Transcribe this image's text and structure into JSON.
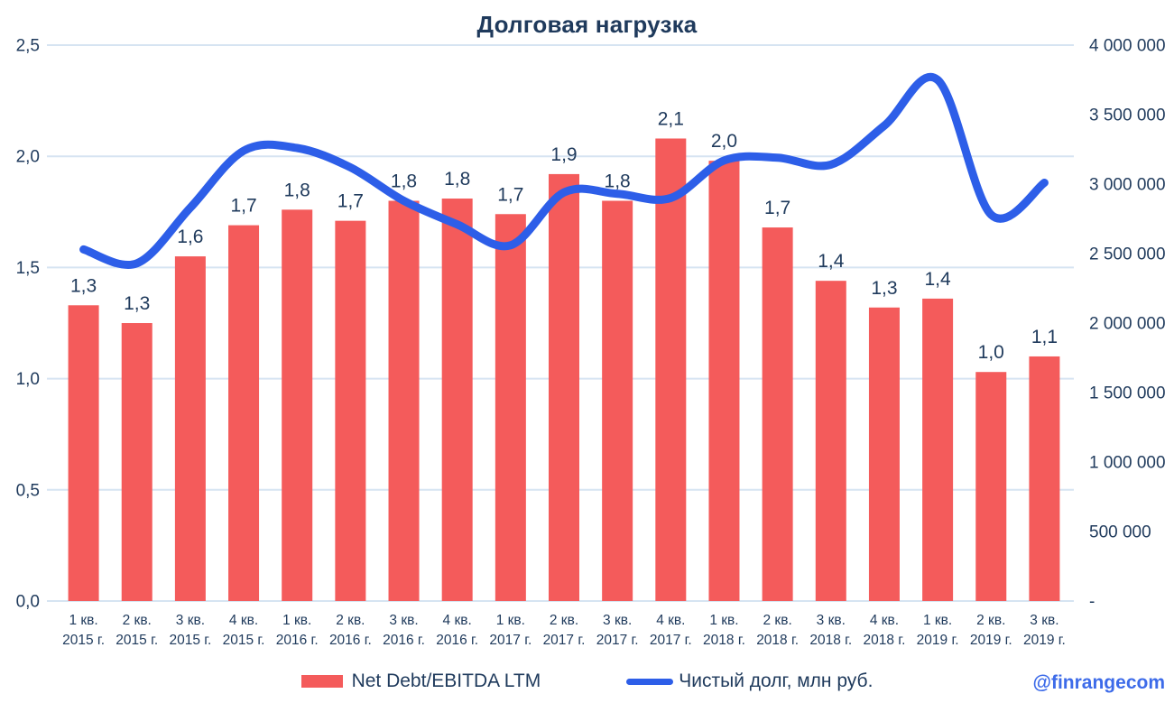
{
  "title": "Долговая нагрузка",
  "watermark": "@finrangecom",
  "legend": {
    "bar_label": "Net Debt/EBITDA LTM",
    "line_label": "Чистый долг, млн руб."
  },
  "colors": {
    "bar": "#F45B5B",
    "line": "#2D5EE8",
    "text": "#1F3A5C",
    "gridline": "#D6E4F2",
    "watermark": "#3D6BE9",
    "background": "#FFFFFF"
  },
  "chart_data": {
    "type": "combo bar+line",
    "title": "Долговая нагрузка",
    "grid": true,
    "legend_position": "bottom",
    "categories": [
      {
        "quarter": "1 кв.",
        "year": "2015 г."
      },
      {
        "quarter": "2 кв.",
        "year": "2015 г."
      },
      {
        "quarter": "3 кв.",
        "year": "2015 г."
      },
      {
        "quarter": "4 кв.",
        "year": "2015 г."
      },
      {
        "quarter": "1 кв.",
        "year": "2016 г."
      },
      {
        "quarter": "2 кв.",
        "year": "2016 г."
      },
      {
        "quarter": "3 кв.",
        "year": "2016 г."
      },
      {
        "quarter": "4 кв.",
        "year": "2016 г."
      },
      {
        "quarter": "1 кв.",
        "year": "2017 г."
      },
      {
        "quarter": "2 кв.",
        "year": "2017 г."
      },
      {
        "quarter": "3 кв.",
        "year": "2017 г."
      },
      {
        "quarter": "4 кв.",
        "year": "2017 г."
      },
      {
        "quarter": "1 кв.",
        "year": "2018 г."
      },
      {
        "quarter": "2 кв.",
        "year": "2018 г."
      },
      {
        "quarter": "3 кв.",
        "year": "2018 г."
      },
      {
        "quarter": "4 кв.",
        "year": "2018 г."
      },
      {
        "quarter": "1 кв.",
        "year": "2019 г."
      },
      {
        "quarter": "2 кв.",
        "year": "2019 г."
      },
      {
        "quarter": "3 кв.",
        "year": "2019 г."
      }
    ],
    "series": [
      {
        "name": "Net Debt/EBITDA LTM",
        "type": "bar",
        "axis": "left",
        "color": "#F45B5B",
        "values": [
          1.33,
          1.25,
          1.55,
          1.69,
          1.76,
          1.71,
          1.8,
          1.81,
          1.74,
          1.92,
          1.8,
          2.08,
          1.98,
          1.68,
          1.44,
          1.32,
          1.36,
          1.03,
          1.1
        ],
        "data_labels": [
          "1,3",
          "1,3",
          "1,6",
          "1,7",
          "1,8",
          "1,7",
          "1,8",
          "1,8",
          "1,7",
          "1,9",
          "1,8",
          "2,1",
          "2,0",
          "1,7",
          "1,4",
          "1,3",
          "1,4",
          "1,0",
          "1,1"
        ]
      },
      {
        "name": "Чистый долг, млн руб.",
        "type": "line",
        "axis": "right",
        "color": "#2D5EE8",
        "smooth": true,
        "values": [
          2530000,
          2430000,
          2830000,
          3240000,
          3260000,
          3120000,
          2880000,
          2710000,
          2560000,
          2940000,
          2930000,
          2900000,
          3170000,
          3190000,
          3140000,
          3420000,
          3750000,
          2780000,
          3010000
        ]
      }
    ],
    "left_axis": {
      "min": 0,
      "max": 2.5,
      "ticks": [
        "2,5",
        "2,0",
        "1,5",
        "1,0",
        "0,5",
        "0,0"
      ]
    },
    "right_axis": {
      "min": 0,
      "max": 4000000,
      "ticks": [
        "4 000 000",
        "3 500 000",
        "3 000 000",
        "2 500 000",
        "2 000 000",
        "1 500 000",
        "1 000 000",
        "500 000",
        "-"
      ]
    }
  }
}
